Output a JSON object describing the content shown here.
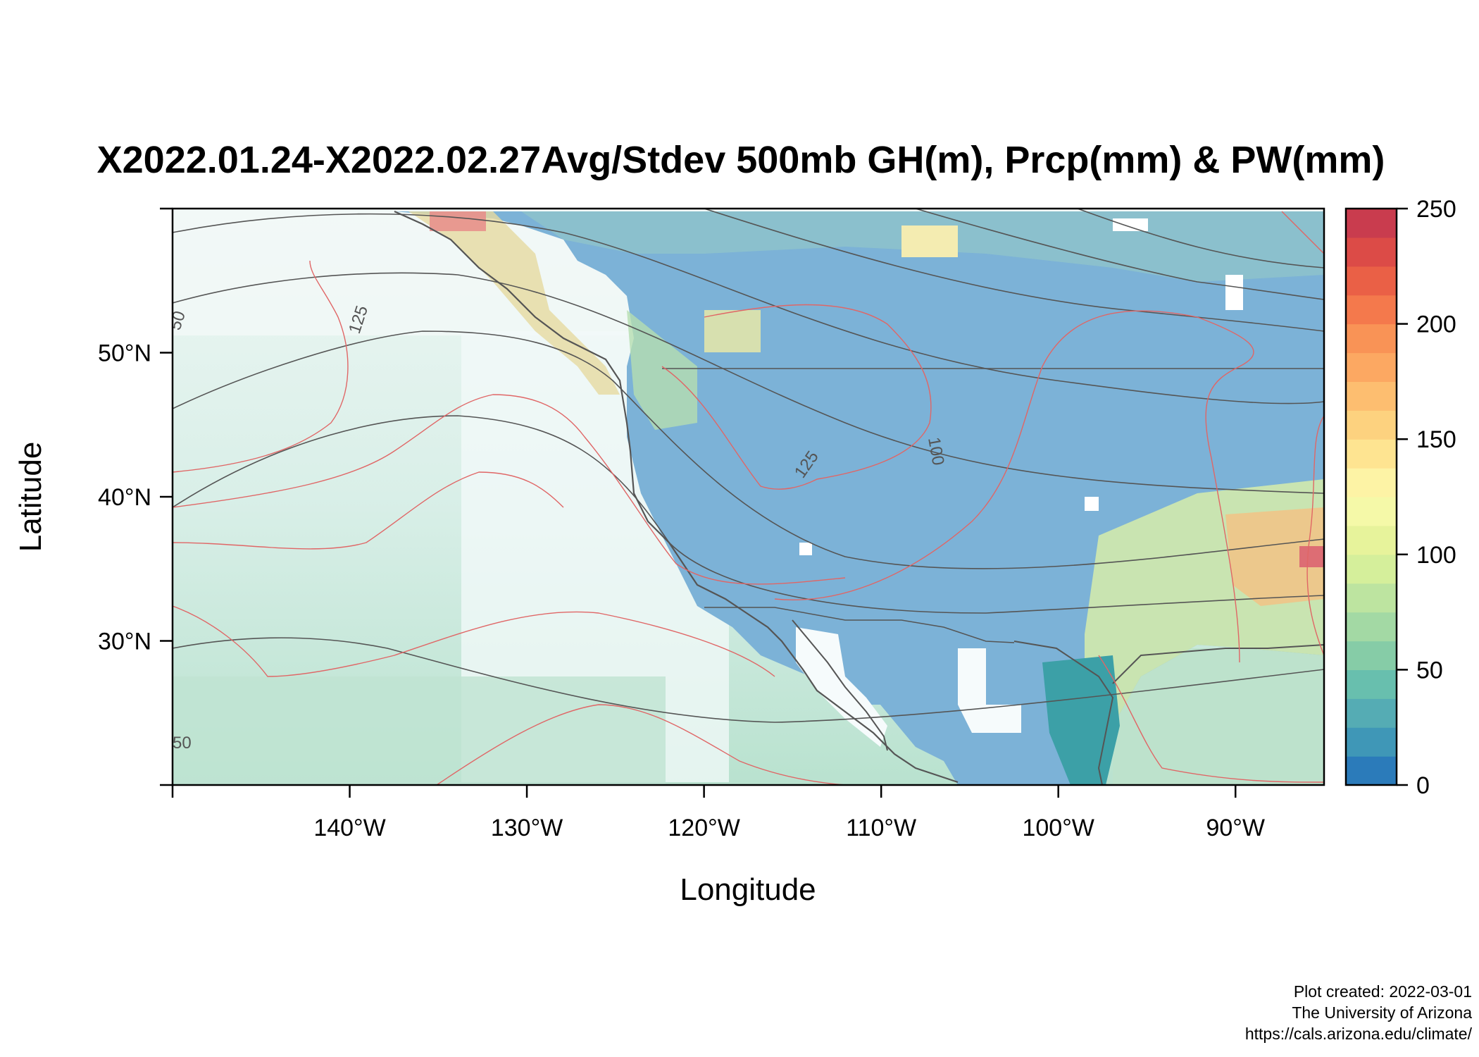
{
  "title": "X2022.01.24-X2022.02.27Avg/Stdev 500mb GH(m), Prcp(mm) & PW(mm)",
  "x_axis": {
    "label": "Longitude",
    "ticks": [
      {
        "label": "140°W",
        "lon": -140
      },
      {
        "label": "130°W",
        "lon": -130
      },
      {
        "label": "120°W",
        "lon": -120
      },
      {
        "label": "110°W",
        "lon": -110
      },
      {
        "label": "100°W",
        "lon": -100
      },
      {
        "label": "90°W",
        "lon": -90
      }
    ],
    "range": [
      -150,
      -85
    ]
  },
  "y_axis": {
    "label": "Latitude",
    "ticks": [
      {
        "label": "50°N",
        "lat": 50
      },
      {
        "label": "40°N",
        "lat": 40
      },
      {
        "label": "30°N",
        "lat": 30
      }
    ],
    "range": [
      20,
      60
    ]
  },
  "colorbar": {
    "min": 0,
    "max": 250,
    "tick_labels": [
      "250",
      "200",
      "150",
      "100",
      "50",
      "0"
    ],
    "colors": [
      "#2b7bba",
      "#3f97b7",
      "#55acb4",
      "#68bfae",
      "#86cca7",
      "#a3d9a4",
      "#bde4a0",
      "#d5ef9b",
      "#e7f39b",
      "#f5f9a8",
      "#fdf3a5",
      "#fee491",
      "#fdd27f",
      "#fdbe70",
      "#fca862",
      "#f99356",
      "#f4794c",
      "#ea6046",
      "#dc4b47",
      "#c93c4e"
    ]
  },
  "contour_labels": [
    "125",
    "125",
    "100",
    "50",
    "50"
  ],
  "credits": {
    "created": "Plot created: 2022-03-01",
    "org": "The University of Arizona",
    "url": "https://cals.arizona.edu/climate/"
  }
}
